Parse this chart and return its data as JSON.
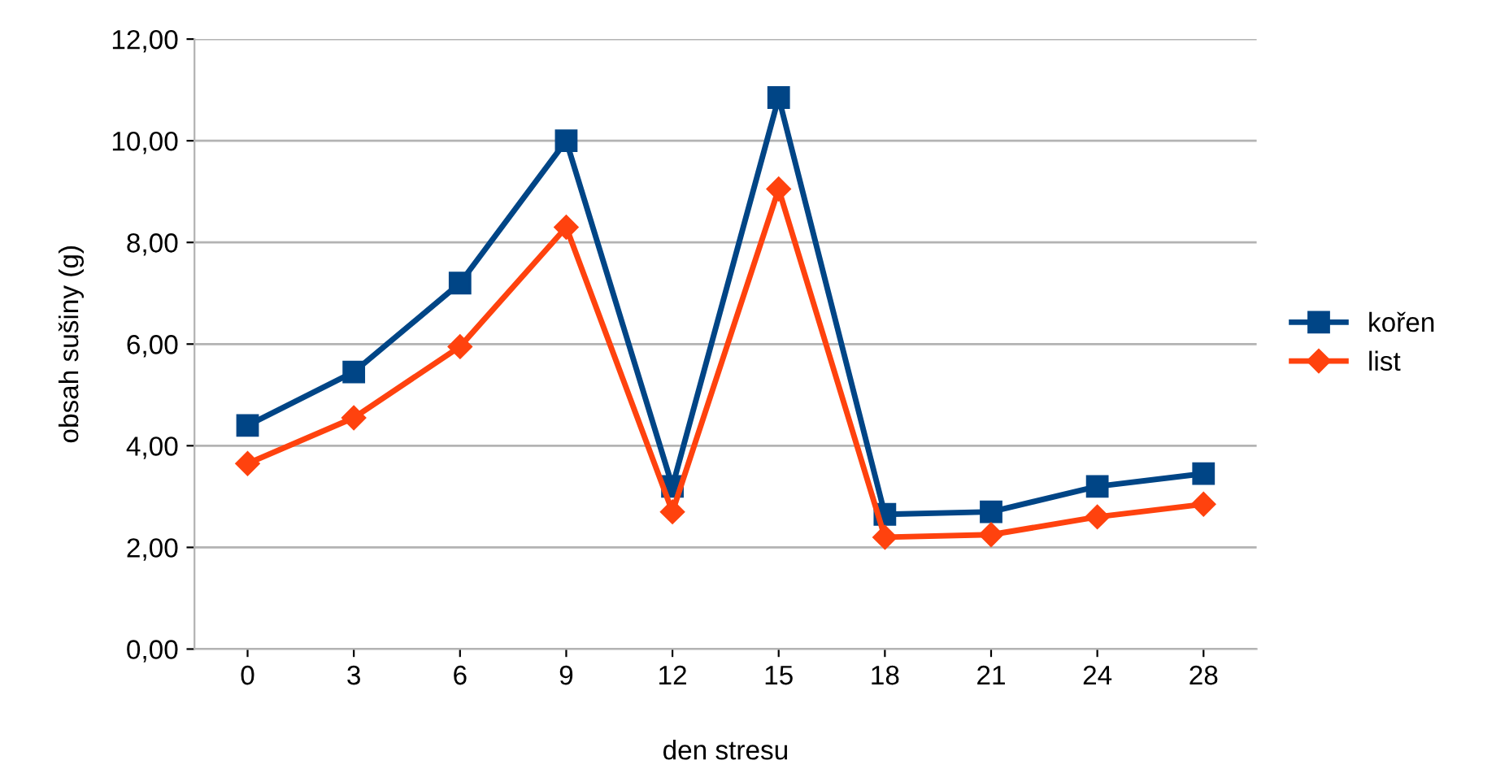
{
  "chart_data": {
    "type": "line",
    "xlabel": "den stresu",
    "ylabel": "obsah sušiny (g)",
    "categories": [
      "0",
      "3",
      "6",
      "9",
      "12",
      "15",
      "18",
      "21",
      "24",
      "28"
    ],
    "series": [
      {
        "name": "kořen",
        "color": "#004586",
        "marker": "square",
        "values": [
          4.4,
          5.45,
          7.2,
          10.0,
          3.2,
          10.85,
          2.65,
          2.7,
          3.2,
          3.45
        ]
      },
      {
        "name": "list",
        "color": "#ff420e",
        "marker": "diamond",
        "values": [
          3.65,
          4.55,
          5.95,
          8.3,
          2.7,
          9.05,
          2.2,
          2.25,
          2.6,
          2.85
        ]
      }
    ],
    "ylim": [
      0,
      12
    ],
    "yticks": [
      {
        "value": 0,
        "label": "0,00"
      },
      {
        "value": 2,
        "label": "2,00"
      },
      {
        "value": 4,
        "label": "4,00"
      },
      {
        "value": 6,
        "label": "6,00"
      },
      {
        "value": 8,
        "label": "8,00"
      },
      {
        "value": 10,
        "label": "10,00"
      },
      {
        "value": 12,
        "label": "12,00"
      }
    ],
    "grid": "y",
    "legend": "right",
    "line_style": "solid"
  }
}
